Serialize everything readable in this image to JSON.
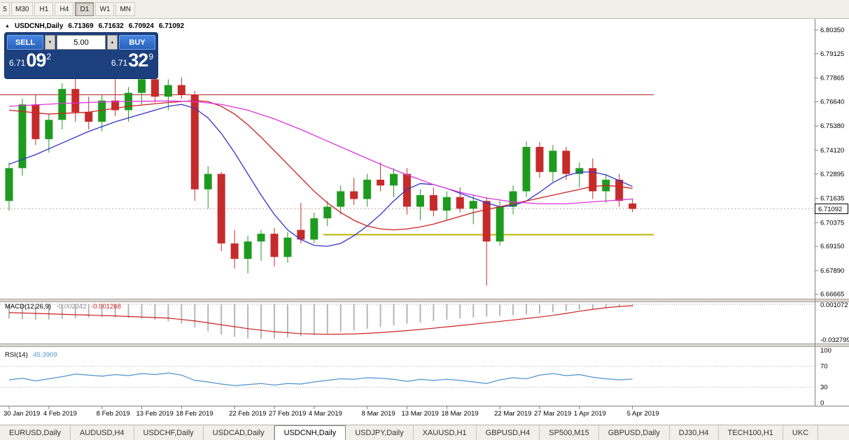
{
  "icons": {
    "panel_toggle": "▲",
    "spinner_up": "▲",
    "spinner_down": "▼"
  },
  "toolbar": {
    "timeframes": [
      {
        "label": "5",
        "active": false,
        "clipped": true
      },
      {
        "label": "M30",
        "active": false
      },
      {
        "label": "H1",
        "active": false
      },
      {
        "label": "H4",
        "active": false
      },
      {
        "label": "D1",
        "active": true
      },
      {
        "label": "W1",
        "active": false
      },
      {
        "label": "MN",
        "active": false
      }
    ]
  },
  "chart": {
    "symbol_period": "USDCNH,Daily",
    "ohlc": {
      "open": "6.71369",
      "high": "6.71632",
      "low": "6.70924",
      "close": "6.71092"
    },
    "one_click": {
      "sell_label": "SELL",
      "buy_label": "BUY",
      "volume": "5.00",
      "sell_price": {
        "small": "6.71",
        "big": "09",
        "sup": "2"
      },
      "buy_price": {
        "small": "6.71",
        "big": "32",
        "sup": "9"
      }
    }
  },
  "indicators": {
    "macd": {
      "title": "MACD(12,26,9)",
      "main_value": "-0.002342",
      "signal_value": "-0.001268"
    },
    "rsi": {
      "title": "RSI(14)",
      "value": "45.3909"
    }
  },
  "tabs": [
    {
      "label": "EURUSD,Daily"
    },
    {
      "label": "AUDUSD,H4"
    },
    {
      "label": "USDCHF,Daily"
    },
    {
      "label": "USDCAD,Daily"
    },
    {
      "label": "USDCNH,Daily",
      "active": true
    },
    {
      "label": "USDJPY,Daily"
    },
    {
      "label": "XAUUSD,H1"
    },
    {
      "label": "GBPUSD,H4"
    },
    {
      "label": "SP500,M15"
    },
    {
      "label": "GBPUSD,Daily"
    },
    {
      "label": "DJ30,H4"
    },
    {
      "label": "TECH100,H1"
    },
    {
      "label": "UKC"
    }
  ],
  "chart_data": {
    "type": "candlestick",
    "symbol": "USDCNH",
    "period": "Daily",
    "colors": {
      "bull": "#1e9b1e",
      "bear": "#c52b2b",
      "ma_fast": "#3333cc",
      "ma_mid": "#cc2222",
      "ma_slow": "#dd33dd",
      "macd_hist": "#b6b6b6",
      "macd_signal": "#cc2222",
      "rsi": "#4f94cd"
    },
    "price_axis_labels": [
      "6.80350",
      "6.79125",
      "6.77865",
      "6.76640",
      "6.75380",
      "6.74120",
      "6.72895",
      "6.71635",
      "6.70375",
      "6.69150",
      "6.67890",
      "6.66665"
    ],
    "current_price": 6.71092,
    "current_price_label": "6.71092",
    "x_axis_labels": [
      [
        0,
        "30 Jan 2019"
      ],
      [
        3,
        "4 Feb 2019"
      ],
      [
        7,
        "8 Feb 2019"
      ],
      [
        10,
        "13 Feb 2019"
      ],
      [
        13,
        "18 Feb 2019"
      ],
      [
        17,
        "22 Feb 2019"
      ],
      [
        20,
        "27 Feb 2019"
      ],
      [
        23,
        "4 Mar 2019"
      ],
      [
        27,
        "8 Mar 2019"
      ],
      [
        30,
        "13 Mar 2019"
      ],
      [
        33,
        "18 Mar 2019"
      ],
      [
        37,
        "22 Mar 2019"
      ],
      [
        40,
        "27 Mar 2019"
      ],
      [
        43,
        "1 Apr 2019"
      ],
      [
        47,
        "5 Apr 2019"
      ]
    ],
    "candles": [
      [
        6.715,
        6.735,
        6.71,
        6.732
      ],
      [
        6.732,
        6.768,
        6.728,
        6.765
      ],
      [
        6.765,
        6.77,
        6.744,
        6.747
      ],
      [
        6.747,
        6.76,
        6.74,
        6.757
      ],
      [
        6.757,
        6.776,
        6.752,
        6.773
      ],
      [
        6.773,
        6.778,
        6.756,
        6.761
      ],
      [
        6.761,
        6.769,
        6.752,
        6.756
      ],
      [
        6.756,
        6.77,
        6.751,
        6.767
      ],
      [
        6.767,
        6.778,
        6.759,
        6.762
      ],
      [
        6.762,
        6.774,
        6.756,
        6.771
      ],
      [
        6.771,
        6.78,
        6.765,
        6.778
      ],
      [
        6.778,
        6.78,
        6.766,
        6.769
      ],
      [
        6.769,
        6.778,
        6.762,
        6.775
      ],
      [
        6.775,
        6.779,
        6.768,
        6.77
      ],
      [
        6.77,
        6.772,
        6.715,
        6.721
      ],
      [
        6.721,
        6.733,
        6.711,
        6.729
      ],
      [
        6.729,
        6.73,
        6.689,
        6.693
      ],
      [
        6.693,
        6.7,
        6.68,
        6.685
      ],
      [
        6.685,
        6.697,
        6.6775,
        6.694
      ],
      [
        6.694,
        6.7,
        6.684,
        6.698
      ],
      [
        6.698,
        6.701,
        6.681,
        6.686
      ],
      [
        6.686,
        6.699,
        6.683,
        6.696
      ],
      [
        6.7,
        6.714,
        6.693,
        6.695
      ],
      [
        6.695,
        6.709,
        6.693,
        6.706
      ],
      [
        6.706,
        6.715,
        6.702,
        6.712
      ],
      [
        6.712,
        6.723,
        6.708,
        6.72
      ],
      [
        6.72,
        6.727,
        6.713,
        6.716
      ],
      [
        6.716,
        6.729,
        6.712,
        6.726
      ],
      [
        6.726,
        6.735,
        6.72,
        6.723
      ],
      [
        6.723,
        6.732,
        6.717,
        6.729
      ],
      [
        6.729,
        6.732,
        6.708,
        6.712
      ],
      [
        6.712,
        6.721,
        6.705,
        6.718
      ],
      [
        6.718,
        6.722,
        6.707,
        6.71
      ],
      [
        6.71,
        6.72,
        6.705,
        6.717
      ],
      [
        6.717,
        6.722,
        6.709,
        6.711
      ],
      [
        6.711,
        6.718,
        6.703,
        6.715
      ],
      [
        6.715,
        6.717,
        6.6712,
        6.694
      ],
      [
        6.694,
        6.715,
        6.692,
        6.712
      ],
      [
        6.712,
        6.723,
        6.708,
        6.72
      ],
      [
        6.72,
        6.746,
        6.717,
        6.743
      ],
      [
        6.743,
        6.7456,
        6.727,
        6.73
      ],
      [
        6.73,
        6.744,
        6.725,
        6.741
      ],
      [
        6.741,
        6.743,
        6.726,
        6.729
      ],
      [
        6.729,
        6.735,
        6.722,
        6.732
      ],
      [
        6.732,
        6.737,
        6.716,
        6.72
      ],
      [
        6.72,
        6.729,
        6.714,
        6.726
      ],
      [
        6.726,
        6.729,
        6.712,
        6.715
      ],
      [
        6.71369,
        6.71632,
        6.70924,
        6.71092
      ]
    ],
    "moving_averages": [
      {
        "name": "ma-fast-line",
        "color": "#3333cc",
        "points": [
          [
            0,
            6.734
          ],
          [
            2,
            6.739
          ],
          [
            4,
            6.745
          ],
          [
            6,
            6.751
          ],
          [
            8,
            6.756
          ],
          [
            10,
            6.76
          ],
          [
            12,
            6.764
          ],
          [
            13,
            6.765
          ],
          [
            14,
            6.763
          ],
          [
            15,
            6.758
          ],
          [
            16,
            6.75
          ],
          [
            17,
            6.74
          ],
          [
            18,
            6.729
          ],
          [
            19,
            6.718
          ],
          [
            20,
            6.708
          ],
          [
            21,
            6.7
          ],
          [
            22,
            6.695
          ],
          [
            23,
            6.692
          ],
          [
            24,
            6.6915
          ],
          [
            25,
            6.693
          ],
          [
            26,
            6.697
          ],
          [
            27,
            6.702
          ],
          [
            28,
            6.708
          ],
          [
            29,
            6.715
          ],
          [
            30,
            6.721
          ],
          [
            31,
            6.724
          ],
          [
            32,
            6.7235
          ],
          [
            33,
            6.7215
          ],
          [
            34,
            6.719
          ],
          [
            35,
            6.7165
          ],
          [
            36,
            6.714
          ],
          [
            37,
            6.712
          ],
          [
            38,
            6.7125
          ],
          [
            39,
            6.715
          ],
          [
            40,
            6.7195
          ],
          [
            41,
            6.7245
          ],
          [
            42,
            6.728
          ],
          [
            43,
            6.73
          ],
          [
            44,
            6.73
          ],
          [
            45,
            6.7285
          ],
          [
            46,
            6.7255
          ],
          [
            47,
            6.7225
          ]
        ]
      },
      {
        "name": "ma-mid-line",
        "color": "#cc2222",
        "points": [
          [
            0,
            6.762
          ],
          [
            3,
            6.76
          ],
          [
            6,
            6.761
          ],
          [
            9,
            6.764
          ],
          [
            12,
            6.766
          ],
          [
            14,
            6.767
          ],
          [
            15,
            6.7665
          ],
          [
            16,
            6.764
          ],
          [
            17,
            6.76
          ],
          [
            18,
            6.7545
          ],
          [
            19,
            6.748
          ],
          [
            20,
            6.741
          ],
          [
            21,
            6.734
          ],
          [
            22,
            6.727
          ],
          [
            23,
            6.72
          ],
          [
            24,
            6.714
          ],
          [
            25,
            6.709
          ],
          [
            26,
            6.705
          ],
          [
            27,
            6.702
          ],
          [
            28,
            6.7005
          ],
          [
            29,
            6.7
          ],
          [
            30,
            6.7005
          ],
          [
            31,
            6.7015
          ],
          [
            32,
            6.703
          ],
          [
            33,
            6.705
          ],
          [
            34,
            6.707
          ],
          [
            35,
            6.709
          ],
          [
            36,
            6.7105
          ],
          [
            37,
            6.712
          ],
          [
            38,
            6.7135
          ],
          [
            39,
            6.715
          ],
          [
            40,
            6.7165
          ],
          [
            41,
            6.718
          ],
          [
            42,
            6.7195
          ],
          [
            43,
            6.721
          ],
          [
            44,
            6.7225
          ],
          [
            45,
            6.723
          ],
          [
            46,
            6.7225
          ],
          [
            47,
            6.7215
          ]
        ]
      },
      {
        "name": "ma-slow-line",
        "color": "#dd33dd",
        "points": [
          [
            0,
            6.764
          ],
          [
            4,
            6.7655
          ],
          [
            8,
            6.7665
          ],
          [
            12,
            6.7668
          ],
          [
            14,
            6.7665
          ],
          [
            16,
            6.765
          ],
          [
            18,
            6.762
          ],
          [
            20,
            6.7575
          ],
          [
            22,
            6.752
          ],
          [
            24,
            6.746
          ],
          [
            26,
            6.74
          ],
          [
            28,
            6.734
          ],
          [
            30,
            6.7285
          ],
          [
            32,
            6.7235
          ],
          [
            34,
            6.7195
          ],
          [
            36,
            6.7165
          ],
          [
            38,
            6.7145
          ],
          [
            40,
            6.7135
          ],
          [
            42,
            6.7135
          ],
          [
            44,
            6.7145
          ],
          [
            46,
            6.7155
          ],
          [
            47,
            6.716
          ]
        ]
      }
    ],
    "hlines": [
      {
        "name": "resistance-line",
        "price": 6.77,
        "color": "#b22222",
        "width": 1,
        "from_bar": -0.7,
        "to_bar": 48.6
      },
      {
        "name": "support-line",
        "price": 6.6975,
        "color": "#b8b400",
        "width": 2,
        "from_bar": 23.7,
        "to_bar": 48.6
      }
    ],
    "macd": {
      "axis_labels": [
        "0.001072",
        "-0.032799"
      ],
      "max": 0.001072,
      "min": -0.032799,
      "histogram": [
        -0.013,
        -0.0135,
        -0.014,
        -0.0138,
        -0.0132,
        -0.0125,
        -0.012,
        -0.0118,
        -0.012,
        -0.0125,
        -0.0132,
        -0.014,
        -0.0155,
        -0.0175,
        -0.021,
        -0.0245,
        -0.0275,
        -0.0295,
        -0.0308,
        -0.0312,
        -0.0308,
        -0.03,
        -0.029,
        -0.0278,
        -0.0265,
        -0.025,
        -0.0235,
        -0.022,
        -0.0205,
        -0.019,
        -0.0176,
        -0.0163,
        -0.015,
        -0.0139,
        -0.0128,
        -0.0119,
        -0.0112,
        -0.0106,
        -0.01,
        -0.0092,
        -0.0082,
        -0.0071,
        -0.006,
        -0.005,
        -0.0042,
        -0.0035,
        -0.0028,
        -0.0023
      ],
      "signal_points": [
        [
          0,
          -0.0075
        ],
        [
          4,
          -0.009
        ],
        [
          8,
          -0.0105
        ],
        [
          12,
          -0.0125
        ],
        [
          14,
          -0.015
        ],
        [
          16,
          -0.0185
        ],
        [
          18,
          -0.022
        ],
        [
          20,
          -0.0248
        ],
        [
          22,
          -0.0265
        ],
        [
          24,
          -0.0272
        ],
        [
          26,
          -0.0268
        ],
        [
          28,
          -0.0256
        ],
        [
          30,
          -0.0238
        ],
        [
          32,
          -0.0216
        ],
        [
          34,
          -0.0192
        ],
        [
          36,
          -0.0167
        ],
        [
          38,
          -0.0142
        ],
        [
          40,
          -0.0115
        ],
        [
          41,
          -0.01
        ],
        [
          42,
          -0.0082
        ],
        [
          43,
          -0.0063
        ],
        [
          44,
          -0.0046
        ],
        [
          45,
          -0.0031
        ],
        [
          46,
          -0.002
        ],
        [
          47,
          -0.0013
        ]
      ]
    },
    "rsi": {
      "axis_labels": [
        "100",
        "70",
        "30",
        "0"
      ],
      "levels": [
        70,
        30
      ],
      "values": [
        44,
        47,
        42,
        46,
        50,
        55,
        53,
        51,
        54,
        52,
        56,
        54,
        57,
        53,
        43,
        40,
        36,
        33,
        35,
        37,
        34,
        37,
        36,
        40,
        43,
        46,
        45,
        48,
        47,
        45,
        41,
        45,
        43,
        45,
        43,
        40,
        37,
        44,
        48,
        46,
        53,
        56,
        52,
        54,
        49,
        46,
        44,
        45.39
      ]
    }
  }
}
